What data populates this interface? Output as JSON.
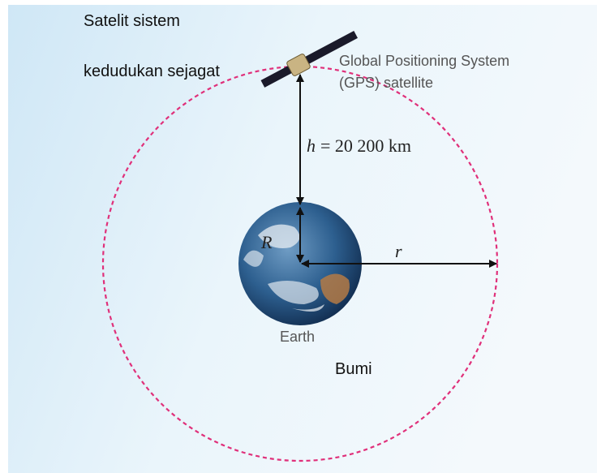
{
  "labels": {
    "satellite_ms_line1": "Satelit sistem",
    "satellite_ms_line2": "kedudukan sejagat",
    "satellite_en_line1": "Global Positioning System",
    "satellite_en_line2": "(GPS) satellite",
    "height": {
      "symbol": "h",
      "text": "= 20 200 km"
    },
    "earth_radius": "R",
    "orbit_radius": "r",
    "earth_en": "Earth",
    "earth_ms": "Bumi"
  }
}
